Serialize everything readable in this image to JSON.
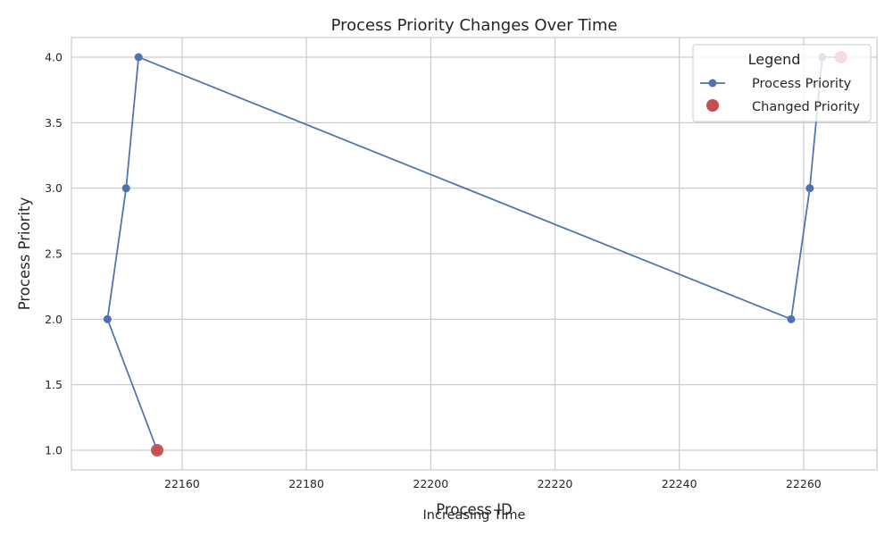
{
  "chart_data": {
    "type": "line",
    "title": "Process Priority Changes Over Time",
    "xlabel": "Process ID",
    "ylabel": "Process Priority",
    "footnote": "Increasing Time",
    "xlim": [
      22142.2,
      22271.8
    ],
    "ylim": [
      0.85,
      4.15
    ],
    "xticks": [
      22160,
      22180,
      22200,
      22220,
      22240,
      22260
    ],
    "yticks": [
      1.0,
      1.5,
      2.0,
      2.5,
      3.0,
      3.5,
      4.0
    ],
    "grid": true,
    "legend_position": "top-right",
    "legend": {
      "title": "Legend",
      "entries": [
        "Process Priority",
        "Changed Priority"
      ]
    },
    "series": [
      {
        "name": "Process Priority",
        "color": "#4c72b0",
        "marker": "circle",
        "points": [
          {
            "x": 22156,
            "y": 1
          },
          {
            "x": 22148,
            "y": 2
          },
          {
            "x": 22151,
            "y": 3
          },
          {
            "x": 22153,
            "y": 4
          },
          {
            "x": 22258,
            "y": 2
          },
          {
            "x": 22261,
            "y": 3
          },
          {
            "x": 22263,
            "y": 4
          },
          {
            "x": 22266,
            "y": 4
          }
        ]
      },
      {
        "name": "Changed Priority",
        "color": "#c44e52",
        "marker": "large-circle",
        "points": [
          {
            "x": 22156,
            "y": 1
          },
          {
            "x": 22266,
            "y": 4
          }
        ]
      }
    ]
  }
}
